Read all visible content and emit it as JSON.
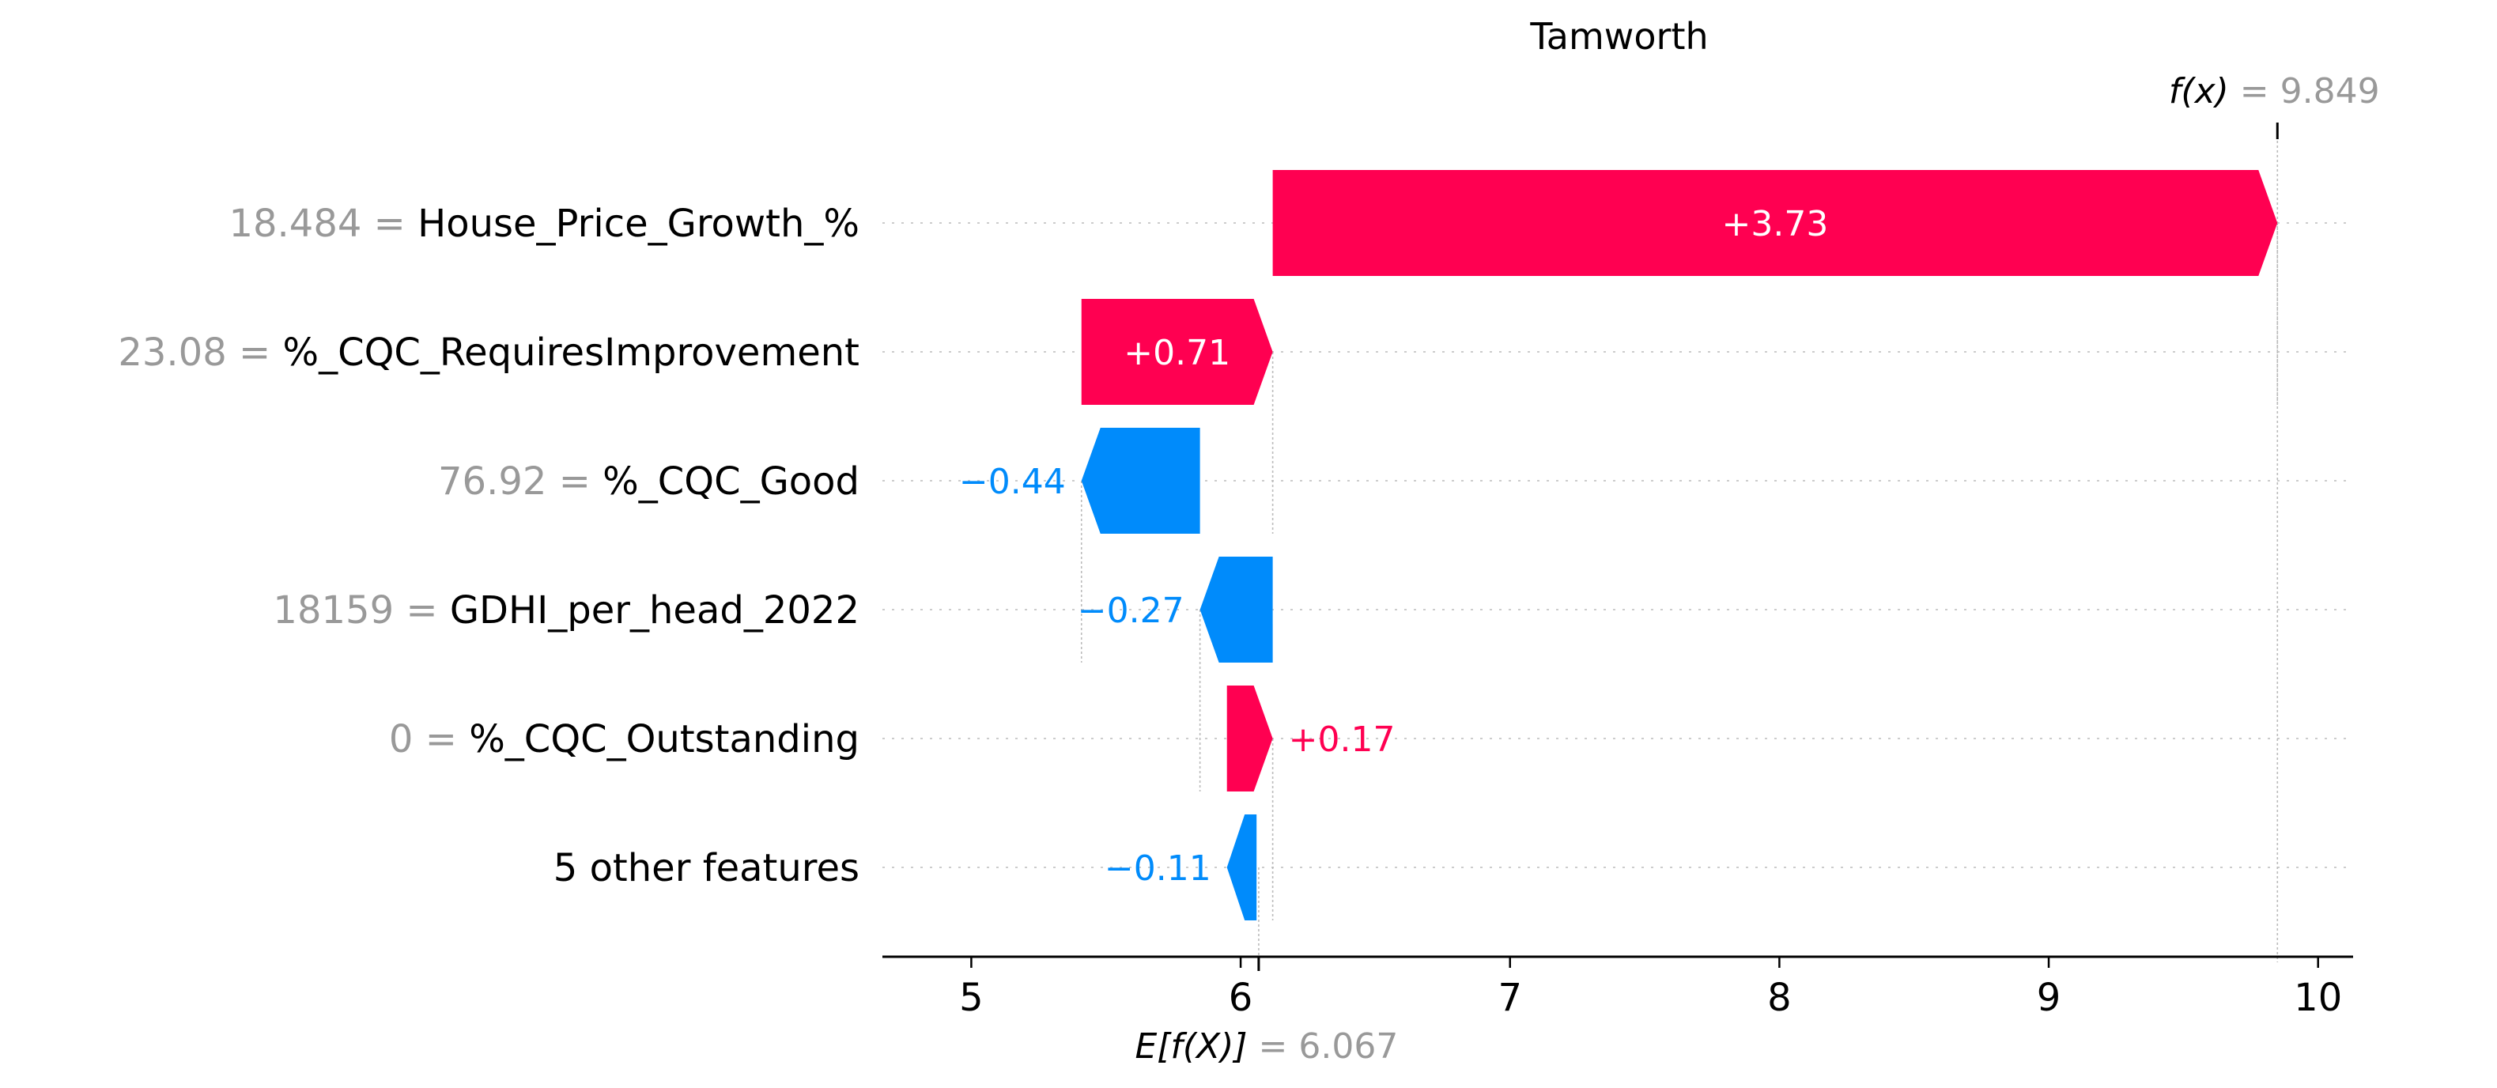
{
  "chart_data": {
    "type": "waterfall",
    "title": "Tamworth",
    "base_value": 6.067,
    "base_label_prefix": "E[f(X)]",
    "output_value": 9.849,
    "output_label_prefix": "f(x)",
    "xlim": [
      4.67,
      10.13
    ],
    "xticks": [
      5,
      6,
      7,
      8,
      9,
      10
    ],
    "grid": "horizontal dotted row lines",
    "colors": {
      "positive": "#ff0051",
      "negative": "#008bfb",
      "value_gray": "#999999",
      "text": "#000000"
    },
    "features": [
      {
        "value": "18.484",
        "name": "House_Price_Growth_%",
        "contribution": 3.73,
        "label": "+3.73",
        "start": 6.119,
        "end": 9.849
      },
      {
        "value": "23.08",
        "name": "%_CQC_RequiresImprovement",
        "contribution": 0.71,
        "label": "+0.71",
        "start": 5.409,
        "end": 6.119
      },
      {
        "value": "76.92",
        "name": "%_CQC_Good",
        "contribution": -0.44,
        "label": "−0.44",
        "start": 5.849,
        "end": 5.409
      },
      {
        "value": "18159",
        "name": "GDHI_per_head_2022",
        "contribution": -0.27,
        "label": "−0.27",
        "start": 6.119,
        "end": 5.849
      },
      {
        "value": "0",
        "name": "%_CQC_Outstanding",
        "contribution": 0.17,
        "label": "+0.17",
        "start": 5.949,
        "end": 6.119
      },
      {
        "value": "",
        "name": "5 other features",
        "contribution": -0.11,
        "label": "−0.11",
        "start": 6.059,
        "end": 5.949
      }
    ]
  }
}
